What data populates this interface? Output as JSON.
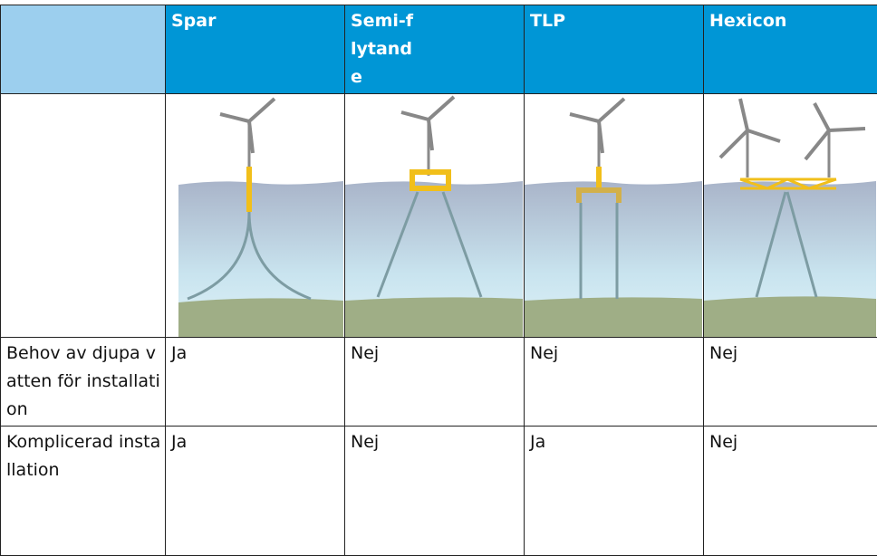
{
  "table": {
    "header": [
      "",
      "Spar",
      "Semi-flytande",
      "TLP",
      "Hexicon"
    ],
    "rows": [
      [
        "Behov av djupa vatten för installation",
        "Ja",
        "Nej",
        "Nej",
        "Nej"
      ],
      [
        "Komplicerad installation",
        "Ja",
        "Nej",
        "Ja",
        "Nej"
      ]
    ]
  }
}
